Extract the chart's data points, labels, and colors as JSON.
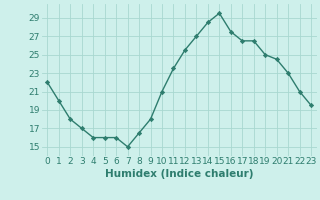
{
  "x": [
    0,
    1,
    2,
    3,
    4,
    5,
    6,
    7,
    8,
    9,
    10,
    11,
    12,
    13,
    14,
    15,
    16,
    17,
    18,
    19,
    20,
    21,
    22,
    23
  ],
  "y": [
    22,
    20,
    18,
    17,
    16,
    16,
    16,
    15,
    16.5,
    18,
    21,
    23.5,
    25.5,
    27,
    28.5,
    29.5,
    27.5,
    26.5,
    26.5,
    25,
    24.5,
    23,
    21,
    19.5
  ],
  "line_color": "#2e7d6e",
  "marker": "D",
  "marker_size": 2.2,
  "bg_color": "#cef0eb",
  "grid_color": "#a8d8d0",
  "xlabel": "Humidex (Indice chaleur)",
  "ylim": [
    14,
    30.5
  ],
  "xlim": [
    -0.5,
    23.5
  ],
  "yticks": [
    15,
    17,
    19,
    21,
    23,
    25,
    27,
    29
  ],
  "xticks": [
    0,
    1,
    2,
    3,
    4,
    5,
    6,
    7,
    8,
    9,
    10,
    11,
    12,
    13,
    14,
    15,
    16,
    17,
    18,
    19,
    20,
    21,
    22,
    23
  ],
  "xlabel_fontsize": 7.5,
  "tick_fontsize": 6.5,
  "line_width": 1.0,
  "text_color": "#2e7d6e"
}
